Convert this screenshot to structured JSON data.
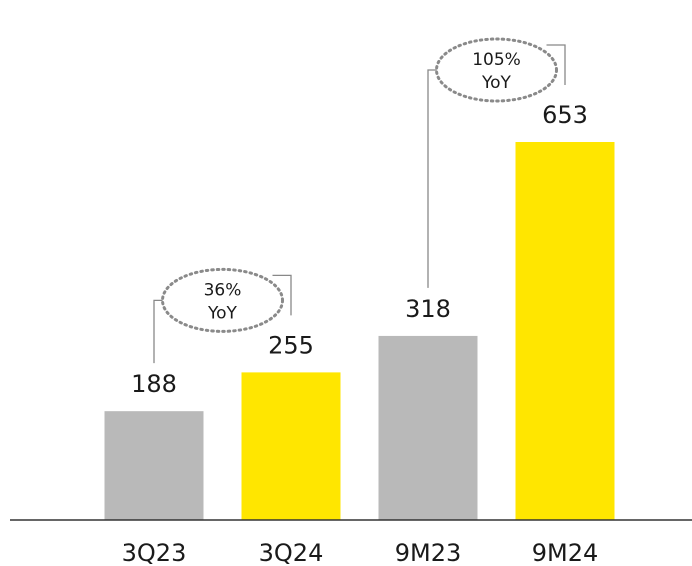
{
  "chart_data": {
    "type": "bar",
    "categories": [
      "3Q23",
      "3Q24",
      "9M23",
      "9M24"
    ],
    "values": [
      188,
      255,
      318,
      653
    ],
    "colors": [
      "#b9b9b9",
      "#ffe600",
      "#b9b9b9",
      "#ffe600"
    ],
    "annotations": [
      {
        "text_line1": "36%",
        "text_line2": "YoY",
        "from": 0,
        "to": 1
      },
      {
        "text_line1": "105%",
        "text_line2": "YoY",
        "from": 2,
        "to": 3
      }
    ],
    "title": "",
    "xlabel": "",
    "ylabel": "",
    "ylim": [
      0,
      700
    ],
    "grid": false,
    "legend": "none"
  }
}
